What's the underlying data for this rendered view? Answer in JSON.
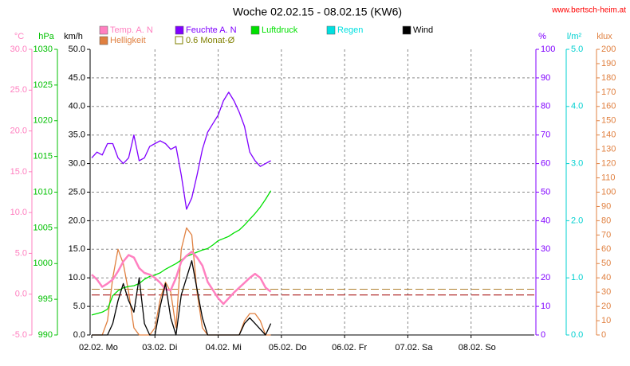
{
  "chart_data": {
    "type": "line",
    "title": "Woche 02.02.15 - 08.02.15 (KW6)",
    "source": "www.bertsch-heim.at",
    "x": [
      0,
      2,
      4,
      6,
      8,
      10,
      12,
      14,
      16,
      18,
      20,
      22,
      24,
      26,
      28,
      30,
      32,
      34,
      36,
      38,
      40,
      42,
      44,
      46,
      48,
      50,
      52,
      54,
      56,
      58,
      60,
      62,
      64,
      66,
      68
    ],
    "xlim": [
      0,
      168
    ],
    "xticks": [
      {
        "value": 0,
        "label": "02.02. Mo"
      },
      {
        "value": 24,
        "label": "03.02. Di"
      },
      {
        "value": 48,
        "label": "04.02. Mi"
      },
      {
        "value": 72,
        "label": "05.02. Do"
      },
      {
        "value": 96,
        "label": "06.02. Fr"
      },
      {
        "value": 120,
        "label": "07.02. Sa"
      },
      {
        "value": 144,
        "label": "08.02. So"
      }
    ],
    "grid": true,
    "grid_axis": "kmh",
    "axes": {
      "temp": {
        "label": "°C",
        "color": "#ff80c0",
        "lim": [
          -5,
          30
        ],
        "ticks": [
          {
            "value": -5,
            "label": "-5.0"
          },
          {
            "value": 0,
            "label": "0.0"
          },
          {
            "value": 5,
            "label": "5.0"
          },
          {
            "value": 10,
            "label": "10.0"
          },
          {
            "value": 15,
            "label": "15.0"
          },
          {
            "value": 20,
            "label": "20.0"
          },
          {
            "value": 25,
            "label": "25.0"
          },
          {
            "value": 30,
            "label": "30.0"
          }
        ]
      },
      "hpa": {
        "label": "hPa",
        "color": "#00c000",
        "lim": [
          990,
          1030
        ],
        "ticks": [
          990,
          995,
          1000,
          1005,
          1010,
          1015,
          1020,
          1025,
          1030
        ]
      },
      "kmh": {
        "label": "km/h",
        "color": "#000000",
        "lim": [
          0,
          50
        ],
        "ticks": [
          {
            "value": 0,
            "label": "0.0"
          },
          {
            "value": 5,
            "label": "5.0"
          },
          {
            "value": 10,
            "label": "10.0"
          },
          {
            "value": 15,
            "label": "15.0"
          },
          {
            "value": 20,
            "label": "20.0"
          },
          {
            "value": 25,
            "label": "25.0"
          },
          {
            "value": 30,
            "label": "30.0"
          },
          {
            "value": 35,
            "label": "35.0"
          },
          {
            "value": 40,
            "label": "40.0"
          },
          {
            "value": 45,
            "label": "45.0"
          },
          {
            "value": 50,
            "label": "50.0"
          }
        ]
      },
      "pct": {
        "label": "%",
        "color": "#8000ff",
        "lim": [
          0,
          100
        ],
        "ticks": [
          0,
          10,
          20,
          30,
          40,
          50,
          60,
          70,
          80,
          90,
          100
        ]
      },
      "rain": {
        "label": "l/m²",
        "color": "#00d0d0",
        "lim": [
          0,
          5
        ],
        "ticks": [
          {
            "value": 0,
            "label": "0.0"
          },
          {
            "value": 1,
            "label": "1.0"
          },
          {
            "value": 2,
            "label": "2.0"
          },
          {
            "value": 3,
            "label": "3.0"
          },
          {
            "value": 4,
            "label": "4.0"
          },
          {
            "value": 5,
            "label": "5.0"
          }
        ]
      },
      "klux": {
        "label": "klux",
        "color": "#e08040",
        "lim": [
          0,
          200
        ],
        "ticks": [
          0,
          10,
          20,
          30,
          40,
          50,
          60,
          70,
          80,
          90,
          100,
          110,
          120,
          130,
          140,
          150,
          160,
          170,
          180,
          190,
          200
        ]
      }
    },
    "series": [
      {
        "name": "Temp. A. N",
        "color": "#ff80c0",
        "axis": "temp",
        "values": [
          2.4,
          1.8,
          0.9,
          1.3,
          1.8,
          2.8,
          4.0,
          4.8,
          4.5,
          3.2,
          2.6,
          2.4,
          2.0,
          1.4,
          0.6,
          0.5,
          2.0,
          4.0,
          4.7,
          5.2,
          4.5,
          3.5,
          1.5,
          0.5,
          -0.5,
          -1.2,
          -0.5,
          0.2,
          0.8,
          1.4,
          2.0,
          2.5,
          2.0,
          0.8,
          0.3
        ]
      },
      {
        "name": "Feuchte A. N",
        "color": "#8000ff",
        "axis": "pct",
        "values": [
          62,
          64,
          63,
          67,
          67,
          62,
          60,
          62,
          70,
          61,
          62,
          66,
          67,
          68,
          67,
          65,
          66,
          56,
          44,
          48,
          56,
          65,
          71,
          74,
          77,
          82,
          85,
          82,
          78,
          73,
          64,
          61,
          59,
          60,
          61
        ]
      },
      {
        "name": "Luftdruck",
        "color": "#00e000",
        "axis": "hpa",
        "values": [
          992.8,
          993.0,
          993.2,
          993.6,
          995.5,
          996.2,
          996.6,
          996.8,
          996.9,
          997.2,
          997.8,
          998.2,
          998.4,
          998.7,
          999.2,
          999.6,
          1000.0,
          1000.5,
          1001.0,
          1001.3,
          1001.6,
          1001.9,
          1002.1,
          1002.6,
          1003.2,
          1003.5,
          1003.8,
          1004.3,
          1004.7,
          1005.4,
          1006.2,
          1007.0,
          1007.9,
          1009.0,
          1010.2
        ]
      },
      {
        "name": "Regen",
        "color": "#00e0e0",
        "axis": "rain",
        "values": [
          null,
          null,
          null,
          null,
          null,
          null,
          null,
          null,
          null,
          null,
          null,
          null,
          null,
          null,
          null,
          null,
          null,
          null,
          null,
          null,
          null,
          null,
          null,
          null,
          null,
          null,
          null,
          null,
          null,
          null,
          null,
          null,
          null,
          null,
          null
        ]
      },
      {
        "name": "Wind",
        "color": "#000000",
        "axis": "kmh",
        "values": [
          0,
          0,
          0,
          0,
          2,
          6,
          9,
          6,
          4,
          10,
          2,
          0,
          0,
          5,
          9,
          3,
          0,
          7,
          10,
          13,
          8,
          3,
          0,
          0,
          0,
          0,
          0,
          0,
          0,
          2,
          3,
          2,
          1,
          0,
          2
        ]
      },
      {
        "name": "Helligkeit",
        "color": "#e08040",
        "axis": "klux",
        "values": [
          0,
          0,
          0,
          10,
          40,
          60,
          50,
          30,
          5,
          0,
          0,
          0,
          5,
          25,
          37,
          30,
          5,
          60,
          75,
          70,
          30,
          5,
          0,
          0,
          0,
          0,
          0,
          0,
          0,
          10,
          15,
          15,
          10,
          0,
          0
        ]
      }
    ],
    "average_label": "0.6 Monat-Ø",
    "average_color": "#808000",
    "reference_lines": [
      {
        "value": -0.1,
        "axis": "temp",
        "color": "#a00000"
      },
      {
        "value": 32,
        "axis": "klux",
        "color": "#b08030"
      }
    ]
  }
}
